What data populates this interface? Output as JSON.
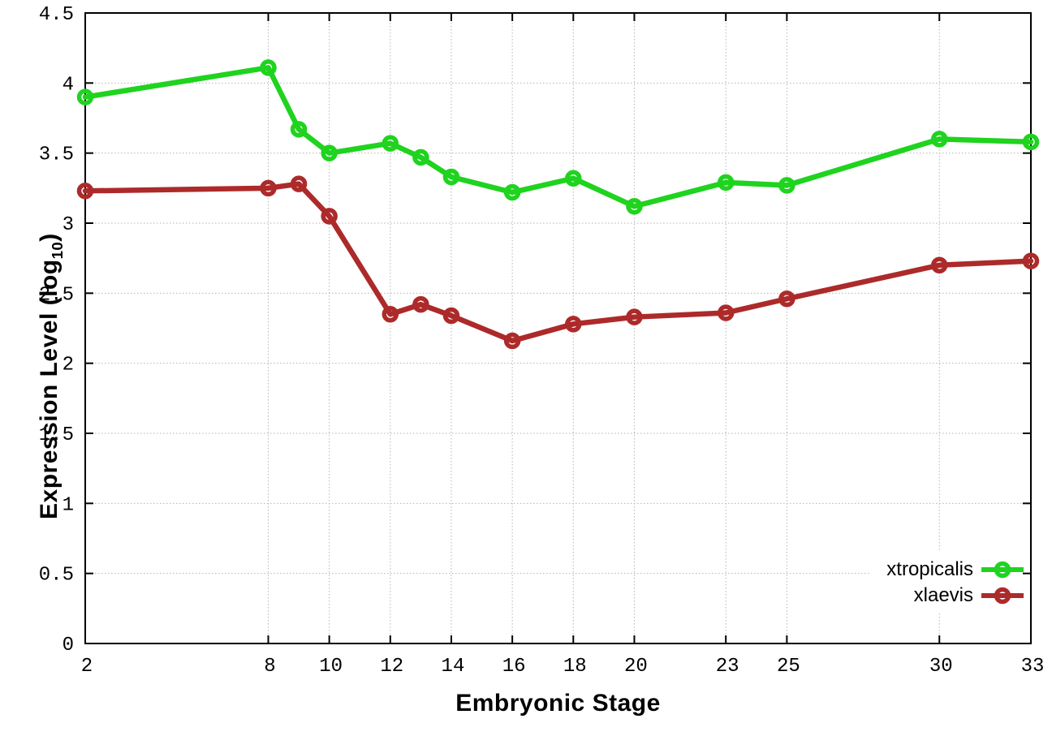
{
  "figure": {
    "background": "#ffffff",
    "border_color": "#000000"
  },
  "chart_data": {
    "type": "line",
    "title": "",
    "xlabel": "Embryonic Stage",
    "ylabel": "Expression Level (log10)",
    "ylabel_parts": {
      "prefix": "Expression Level (log",
      "sub": "10",
      "suffix": ")"
    },
    "xlim": [
      2,
      33
    ],
    "ylim": [
      0,
      4.5
    ],
    "grid": true,
    "gridline_color": "#b5b5b5",
    "legend_position": "bottom-right",
    "xticks": [
      2,
      8,
      10,
      12,
      14,
      16,
      18,
      20,
      23,
      25,
      30,
      33
    ],
    "xticklabels": [
      "2",
      "8",
      "10",
      "12",
      "14",
      "16",
      "18",
      "20",
      "23",
      "25",
      "30",
      "33"
    ],
    "yticks": [
      0,
      0.5,
      1,
      1.5,
      2,
      2.5,
      3,
      3.5,
      4,
      4.5
    ],
    "yticklabels": [
      "0",
      "0.5",
      "1",
      "1.5",
      "2",
      "2.5",
      "3",
      "3.5",
      "4",
      "4.5"
    ],
    "x": [
      2,
      8,
      9,
      10,
      12,
      13,
      14,
      16,
      18,
      20,
      23,
      25,
      30,
      33
    ],
    "series": [
      {
        "name": "xtropicalis",
        "color": "#1fd31f",
        "marker": "open-circle",
        "values": [
          3.9,
          4.11,
          3.67,
          3.5,
          3.57,
          3.47,
          3.33,
          3.22,
          3.32,
          3.12,
          3.29,
          3.27,
          3.6,
          3.58
        ]
      },
      {
        "name": "xlaevis",
        "color": "#ad2a2a",
        "marker": "open-circle",
        "values": [
          3.23,
          3.25,
          3.28,
          3.05,
          2.35,
          2.42,
          2.34,
          2.16,
          2.28,
          2.33,
          2.36,
          2.46,
          2.7,
          2.73
        ]
      }
    ]
  }
}
